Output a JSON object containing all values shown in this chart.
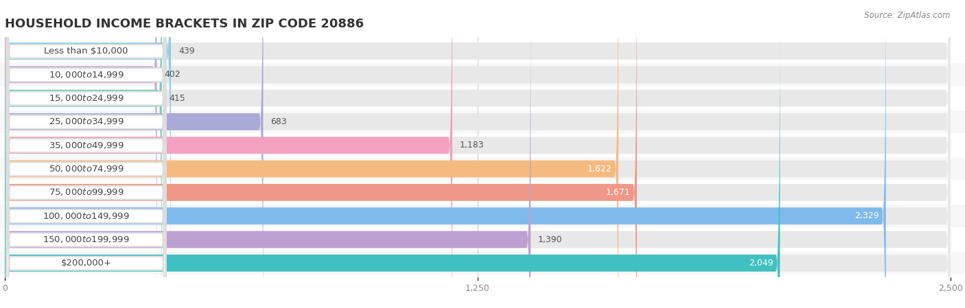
{
  "title": "HOUSEHOLD INCOME BRACKETS IN ZIP CODE 20886",
  "source": "Source: ZipAtlas.com",
  "categories": [
    "Less than $10,000",
    "$10,000 to $14,999",
    "$15,000 to $24,999",
    "$25,000 to $34,999",
    "$35,000 to $49,999",
    "$50,000 to $74,999",
    "$75,000 to $99,999",
    "$100,000 to $149,999",
    "$150,000 to $199,999",
    "$200,000+"
  ],
  "values": [
    439,
    402,
    415,
    683,
    1183,
    1622,
    1671,
    2329,
    1390,
    2049
  ],
  "bar_colors": [
    "#8DCDE8",
    "#C8AAD8",
    "#6DCFBE",
    "#AAAAD8",
    "#F4A0C0",
    "#F5BA80",
    "#F09888",
    "#80BAEC",
    "#BCA0D0",
    "#40C0C0"
  ],
  "xlim": [
    0,
    2500
  ],
  "xticks": [
    0,
    1250,
    2500
  ],
  "bar_bg_color": "#E8E8E8",
  "row_bg_even": "#ffffff",
  "row_bg_odd": "#f7f7f7",
  "figure_bg": "#ffffff",
  "title_color": "#333333",
  "title_fontsize": 13,
  "label_fontsize": 9.5,
  "value_fontsize": 9,
  "source_fontsize": 8.5,
  "inside_value_threshold": 1500,
  "label_badge_color": "#ffffff",
  "label_text_color": "#444444",
  "value_outside_color": "#555555",
  "value_inside_color": "#ffffff"
}
